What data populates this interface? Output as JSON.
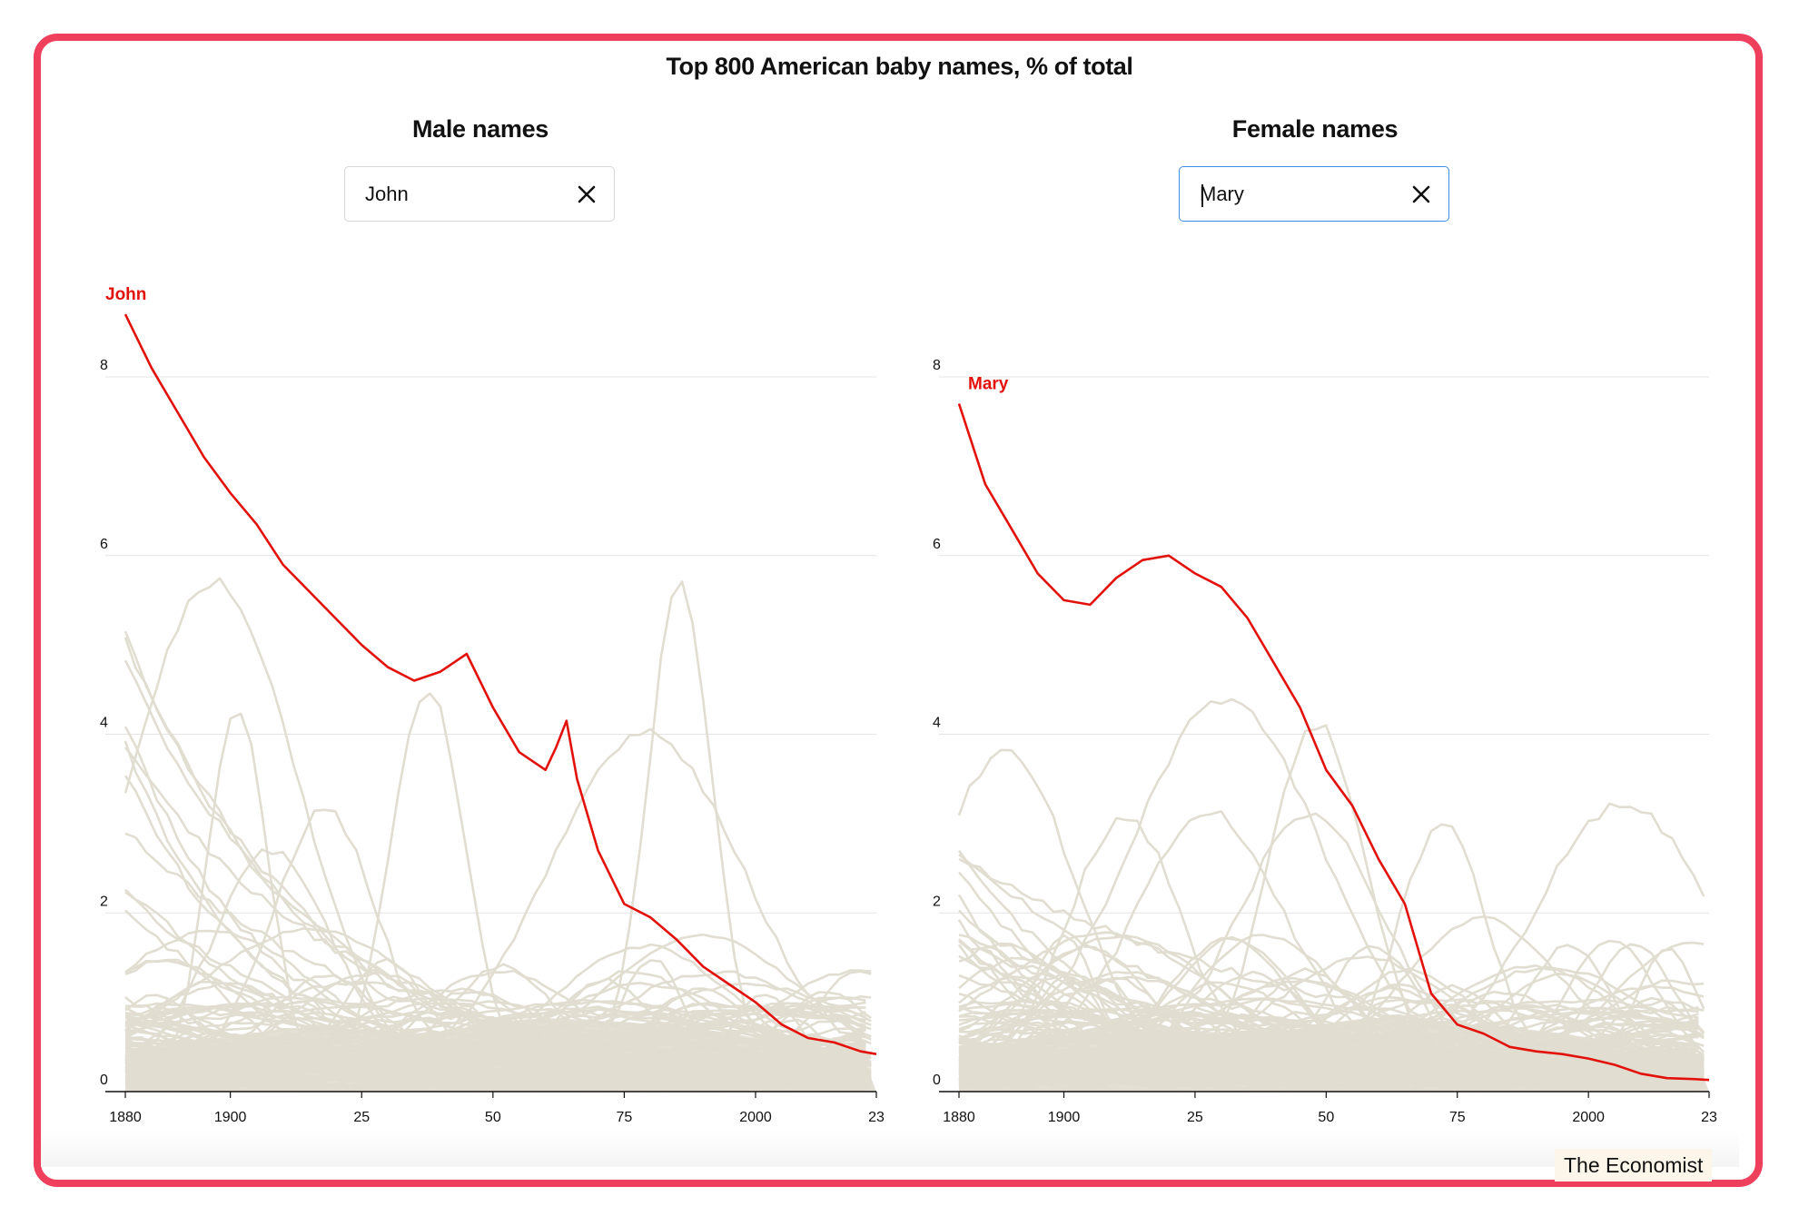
{
  "chart_data": {
    "title": "Top 800 American baby names, % of total",
    "type": "line",
    "x_tick_labels": [
      "1880",
      "1900",
      "25",
      "50",
      "75",
      "2000",
      "23"
    ],
    "x_ticks": [
      1880,
      1900,
      1925,
      1950,
      1975,
      2000,
      2023
    ],
    "y_tick_labels": [
      "0",
      "2",
      "4",
      "6",
      "8"
    ],
    "y_ticks": [
      0,
      2,
      4,
      6,
      8
    ],
    "xlim": [
      1880,
      2023
    ],
    "ylim": [
      0,
      8
    ],
    "grid": "horizontal",
    "colors": {
      "highlight": "#e2120b",
      "background_names": "#e1ddd1",
      "grid": "#e4e4e4",
      "axis": "#111111"
    },
    "panels": [
      {
        "title": "Male names",
        "search_value": "John",
        "active": false,
        "highlight": {
          "name": "John",
          "x": [
            1880,
            1885,
            1890,
            1895,
            1900,
            1905,
            1910,
            1915,
            1920,
            1925,
            1930,
            1935,
            1940,
            1945,
            1950,
            1955,
            1960,
            1962,
            1964,
            1966,
            1970,
            1975,
            1980,
            1985,
            1990,
            1995,
            2000,
            2005,
            2010,
            2015,
            2020,
            2023
          ],
          "y": [
            8.7,
            8.1,
            7.6,
            7.1,
            6.7,
            6.35,
            5.9,
            5.6,
            5.3,
            5.0,
            4.75,
            4.6,
            4.7,
            4.9,
            4.3,
            3.8,
            3.6,
            3.85,
            4.15,
            3.5,
            2.7,
            2.1,
            1.95,
            1.7,
            1.4,
            1.2,
            1.0,
            0.75,
            0.6,
            0.55,
            0.45,
            0.42
          ]
        }
      },
      {
        "title": "Female names",
        "search_value": "Mary",
        "active": true,
        "highlight": {
          "name": "Mary",
          "x": [
            1880,
            1885,
            1890,
            1895,
            1900,
            1905,
            1910,
            1915,
            1920,
            1925,
            1930,
            1935,
            1940,
            1945,
            1950,
            1955,
            1960,
            1965,
            1968,
            1970,
            1975,
            1980,
            1985,
            1990,
            1995,
            2000,
            2005,
            2010,
            2015,
            2020,
            2023
          ],
          "y": [
            7.7,
            6.8,
            6.3,
            5.8,
            5.5,
            5.45,
            5.75,
            5.95,
            6.0,
            5.8,
            5.65,
            5.3,
            4.8,
            4.3,
            3.6,
            3.2,
            2.6,
            2.1,
            1.5,
            1.1,
            0.75,
            0.65,
            0.5,
            0.45,
            0.42,
            0.37,
            0.3,
            0.2,
            0.15,
            0.14,
            0.13
          ]
        }
      }
    ]
  },
  "source": "The Economist"
}
